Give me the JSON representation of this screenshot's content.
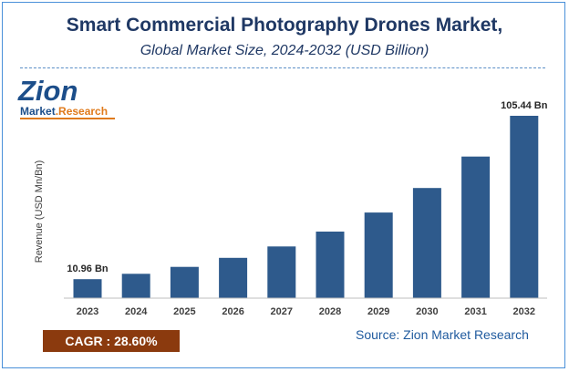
{
  "title": "Smart Commercial Photography Drones Market,",
  "subtitle": "Global Market Size, 2024-2032 (USD Billion)",
  "logo": {
    "main": "Zion",
    "sub_part1": "Market",
    "sub_part2": ".Research"
  },
  "cagr_label": "CAGR : 28.60%",
  "source_label": "Source: Zion Market Research",
  "colors": {
    "bar": "#2e5a8c",
    "title": "#1f3864",
    "cagr_bg": "#8b3a0e",
    "source": "#1f5a9e"
  },
  "chart_data": {
    "type": "bar",
    "categories": [
      "2023",
      "2024",
      "2025",
      "2026",
      "2027",
      "2028",
      "2029",
      "2030",
      "2031",
      "2032"
    ],
    "values": [
      10.96,
      14.1,
      18.1,
      23.3,
      29.9,
      38.5,
      49.5,
      63.7,
      81.9,
      105.44
    ],
    "data_labels": [
      {
        "index": 0,
        "text": "10.96 Bn"
      },
      {
        "index": 9,
        "text": "105.44 Bn"
      }
    ],
    "ylabel": "Revenue (USD Mn/Bn)",
    "xlabel": "",
    "ylim": [
      0,
      105.44
    ],
    "grid": false,
    "legend": "none"
  }
}
